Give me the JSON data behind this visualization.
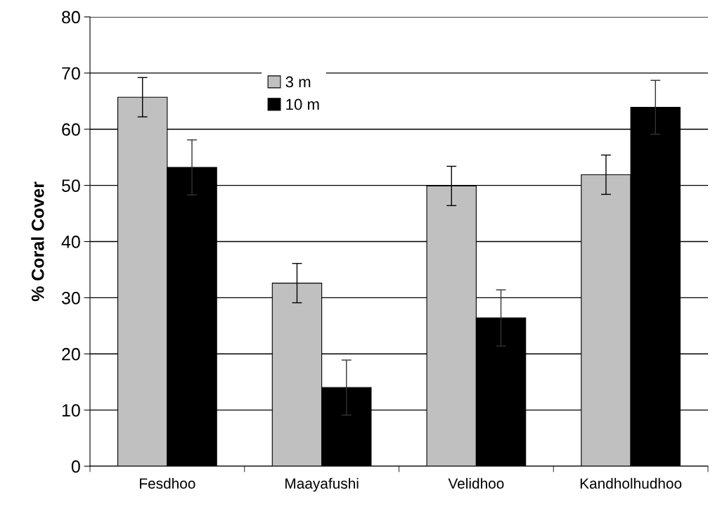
{
  "chart_data": {
    "type": "bar",
    "ylabel": "% Coral Cover",
    "categories": [
      "Fesdhoo",
      "Maayafushi",
      "Velidhoo",
      "Kandholhudhoo"
    ],
    "series": [
      {
        "name": "3 m",
        "color": "#c0c0c0",
        "values": [
          65.7,
          32.6,
          49.9,
          51.9
        ],
        "errors": [
          3.5,
          3.5,
          3.5,
          3.5
        ]
      },
      {
        "name": "10 m",
        "color": "#000000",
        "values": [
          53.2,
          14.0,
          26.4,
          63.9
        ],
        "errors": [
          4.9,
          4.9,
          5.0,
          4.8
        ]
      }
    ],
    "ylim": [
      0,
      80
    ],
    "yticks": [
      0,
      10,
      20,
      30,
      40,
      50,
      60,
      70,
      80
    ],
    "grid": "y",
    "legend": "top"
  }
}
